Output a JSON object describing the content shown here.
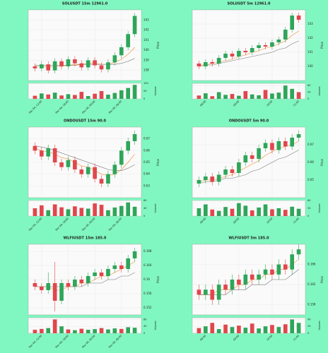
{
  "chart_data": [
    {
      "type": "candlestick",
      "title": "SOLUSDT 15m 12961.0",
      "ylabel": "Price",
      "vlabel": "Volume",
      "up_color": "#2ea65a",
      "down_color": "#e0474c",
      "xlim": [
        -1,
        16
      ],
      "xticks": [
        {
          "value": 1,
          "label": "Dec 04, 12:00"
        },
        {
          "value": 5,
          "label": "Dec 04, 18:00"
        },
        {
          "value": 9,
          "label": "Dec 05, 00:00"
        },
        {
          "value": 13,
          "label": "Dec 05, 06:00"
        }
      ],
      "ylim": [
        137,
        144
      ],
      "yticks": [
        138,
        139,
        140,
        141,
        142,
        143
      ],
      "vlim": [
        0,
        100
      ],
      "vticks": [
        0,
        50,
        100
      ],
      "open": [
        138.4,
        138.2,
        138.6,
        138.0,
        138.9,
        138.4,
        139.1,
        138.7,
        138.3,
        139.0,
        138.5,
        138.1,
        138.8,
        139.5,
        140.3,
        141.6
      ],
      "high": [
        138.7,
        138.9,
        138.9,
        139.2,
        139.2,
        139.4,
        139.4,
        139.0,
        139.3,
        139.3,
        138.8,
        139.1,
        139.8,
        140.6,
        141.9,
        143.7
      ],
      "low": [
        137.9,
        137.9,
        137.7,
        137.7,
        138.1,
        138.1,
        138.4,
        138.0,
        138.0,
        138.2,
        137.8,
        137.8,
        138.5,
        139.2,
        140.0,
        141.3
      ],
      "close": [
        138.2,
        138.6,
        138.0,
        138.9,
        138.4,
        139.1,
        138.7,
        138.3,
        139.0,
        138.5,
        138.1,
        138.8,
        139.5,
        140.3,
        141.6,
        143.4
      ],
      "volume": [
        20,
        35,
        28,
        40,
        22,
        30,
        25,
        45,
        18,
        33,
        50,
        27,
        38,
        55,
        70,
        90
      ],
      "ma_lines": [
        {
          "color": "#f08c2e",
          "values": [
            138.4,
            138.4,
            138.3,
            138.4,
            138.4,
            138.5,
            138.6,
            138.6,
            138.7,
            138.7,
            138.6,
            138.6,
            138.8,
            139.1,
            139.6,
            140.3
          ]
        },
        {
          "color": "#777777",
          "values": [
            138.5,
            138.5,
            138.5,
            138.5,
            138.5,
            138.5,
            138.5,
            138.6,
            138.6,
            138.6,
            138.6,
            138.6,
            138.6,
            138.7,
            138.9,
            139.2
          ]
        }
      ]
    },
    {
      "type": "candlestick",
      "title": "SOLUSDT 5m 12961.0",
      "ylabel": "Price",
      "vlabel": "Volume",
      "up_color": "#2ea65a",
      "down_color": "#e0474c",
      "xlim": [
        -1,
        16
      ],
      "xticks": [
        {
          "value": 1,
          "label": "08:00"
        },
        {
          "value": 6,
          "label": "09:00"
        },
        {
          "value": 11,
          "label": "10:00"
        },
        {
          "value": 15,
          "label": "11:00"
        }
      ],
      "ylim": [
        139,
        144
      ],
      "yticks": [
        140,
        141,
        142,
        143
      ],
      "vlim": [
        0,
        70
      ],
      "vticks": [
        0,
        30,
        60
      ],
      "open": [
        140.2,
        140.0,
        140.3,
        140.2,
        140.6,
        140.9,
        140.7,
        141.1,
        141.0,
        141.3,
        141.5,
        141.4,
        141.7,
        141.9,
        142.6,
        143.6
      ],
      "high": [
        140.4,
        140.5,
        140.5,
        140.8,
        141.1,
        141.1,
        141.3,
        141.3,
        141.5,
        141.7,
        141.7,
        141.9,
        142.1,
        142.8,
        143.8,
        143.8
      ],
      "low": [
        139.8,
        139.8,
        140.0,
        140.0,
        140.4,
        140.5,
        140.5,
        140.8,
        140.8,
        141.1,
        141.2,
        141.2,
        141.5,
        141.7,
        142.4,
        143.1
      ],
      "close": [
        140.0,
        140.3,
        140.2,
        140.6,
        140.9,
        140.7,
        141.1,
        141.0,
        141.3,
        141.5,
        141.4,
        141.7,
        141.9,
        142.6,
        143.6,
        143.3
      ],
      "volume": [
        15,
        25,
        12,
        30,
        18,
        22,
        14,
        35,
        20,
        16,
        40,
        24,
        28,
        60,
        45,
        30
      ],
      "ma_lines": [
        {
          "color": "#f08c2e",
          "values": [
            140.1,
            140.1,
            140.2,
            140.3,
            140.4,
            140.5,
            140.7,
            140.8,
            141.0,
            141.1,
            141.3,
            141.4,
            141.6,
            141.8,
            142.2,
            142.5
          ]
        },
        {
          "color": "#777777",
          "values": [
            140.0,
            140.1,
            140.1,
            140.2,
            140.3,
            140.4,
            140.5,
            140.6,
            140.7,
            140.8,
            140.9,
            141.0,
            141.2,
            141.3,
            141.6,
            141.8
          ]
        }
      ]
    },
    {
      "type": "candlestick",
      "title": "ONDOUSDT 15m 90.0",
      "ylabel": "Price",
      "vlabel": "Volume",
      "up_color": "#2ea65a",
      "down_color": "#e0474c",
      "xlim": [
        -1,
        16
      ],
      "xticks": [
        {
          "value": 1,
          "label": "Dec 04, 12:00"
        },
        {
          "value": 5,
          "label": "Dec 04, 18:00"
        },
        {
          "value": 9,
          "label": "Dec 05, 00:00"
        },
        {
          "value": 13,
          "label": "Dec 05, 06:00"
        }
      ],
      "ylim": [
        0.62,
        0.68
      ],
      "yticks": [
        0.63,
        0.64,
        0.65,
        0.66,
        0.67
      ],
      "vlim": [
        0,
        80
      ],
      "vticks": [
        0,
        40,
        80
      ],
      "open": [
        0.664,
        0.66,
        0.655,
        0.662,
        0.65,
        0.646,
        0.652,
        0.644,
        0.64,
        0.646,
        0.636,
        0.632,
        0.64,
        0.648,
        0.66,
        0.668
      ],
      "high": [
        0.667,
        0.663,
        0.665,
        0.665,
        0.653,
        0.655,
        0.655,
        0.647,
        0.649,
        0.649,
        0.639,
        0.643,
        0.651,
        0.663,
        0.671,
        0.677
      ],
      "low": [
        0.657,
        0.652,
        0.652,
        0.647,
        0.643,
        0.643,
        0.641,
        0.637,
        0.637,
        0.633,
        0.629,
        0.629,
        0.637,
        0.645,
        0.657,
        0.665
      ],
      "close": [
        0.66,
        0.655,
        0.662,
        0.65,
        0.646,
        0.652,
        0.644,
        0.64,
        0.646,
        0.636,
        0.632,
        0.64,
        0.648,
        0.66,
        0.668,
        0.674
      ],
      "volume": [
        40,
        55,
        30,
        60,
        45,
        35,
        50,
        42,
        38,
        65,
        58,
        30,
        44,
        52,
        70,
        48
      ],
      "ma_lines": [
        {
          "color": "#f08c2e",
          "values": [
            0.662,
            0.66,
            0.659,
            0.657,
            0.654,
            0.653,
            0.65,
            0.647,
            0.646,
            0.643,
            0.64,
            0.639,
            0.64,
            0.644,
            0.65,
            0.657
          ]
        },
        {
          "color": "#777777",
          "values": [
            0.664,
            0.663,
            0.662,
            0.66,
            0.658,
            0.656,
            0.654,
            0.652,
            0.65,
            0.648,
            0.646,
            0.644,
            0.643,
            0.643,
            0.645,
            0.648
          ]
        }
      ]
    },
    {
      "type": "candlestick",
      "title": "ONDOUSDT 5m 90.0",
      "ylabel": "Price",
      "vlabel": "Volume",
      "up_color": "#2ea65a",
      "down_color": "#e0474c",
      "xlim": [
        -1,
        16
      ],
      "xticks": [
        {
          "value": 1,
          "label": "08:00"
        },
        {
          "value": 6,
          "label": "09:00"
        },
        {
          "value": 11,
          "label": "10:00"
        },
        {
          "value": 15,
          "label": "11:00"
        }
      ],
      "ylim": [
        0.64,
        0.68
      ],
      "yticks": [
        0.65,
        0.66,
        0.67
      ],
      "vlim": [
        0,
        60
      ],
      "vticks": [
        0,
        30,
        60
      ],
      "open": [
        0.648,
        0.65,
        0.652,
        0.649,
        0.653,
        0.656,
        0.654,
        0.66,
        0.664,
        0.662,
        0.668,
        0.671,
        0.667,
        0.672,
        0.669,
        0.674
      ],
      "high": [
        0.652,
        0.654,
        0.654,
        0.655,
        0.658,
        0.658,
        0.662,
        0.666,
        0.666,
        0.67,
        0.673,
        0.673,
        0.674,
        0.674,
        0.676,
        0.678
      ],
      "low": [
        0.646,
        0.648,
        0.647,
        0.647,
        0.651,
        0.652,
        0.652,
        0.658,
        0.66,
        0.66,
        0.666,
        0.665,
        0.665,
        0.667,
        0.667,
        0.672
      ],
      "close": [
        0.65,
        0.652,
        0.649,
        0.653,
        0.656,
        0.654,
        0.66,
        0.664,
        0.662,
        0.668,
        0.671,
        0.667,
        0.672,
        0.669,
        0.674,
        0.676
      ],
      "volume": [
        30,
        45,
        25,
        20,
        35,
        28,
        50,
        40,
        22,
        33,
        45,
        26,
        30,
        24,
        36,
        28
      ],
      "ma_lines": [
        {
          "color": "#f08c2e",
          "values": [
            0.649,
            0.65,
            0.65,
            0.651,
            0.652,
            0.653,
            0.655,
            0.657,
            0.659,
            0.661,
            0.664,
            0.666,
            0.668,
            0.669,
            0.67,
            0.672
          ]
        },
        {
          "color": "#777777",
          "values": [
            0.648,
            0.649,
            0.649,
            0.65,
            0.651,
            0.651,
            0.652,
            0.653,
            0.655,
            0.656,
            0.658,
            0.66,
            0.662,
            0.663,
            0.665,
            0.667
          ]
        }
      ]
    },
    {
      "type": "candlestick",
      "title": "WLFIUSDT 15m 185.0",
      "ylabel": "Price",
      "vlabel": "Volume",
      "up_color": "#2ea65a",
      "down_color": "#e0474c",
      "xlim": [
        -1,
        16
      ],
      "xticks": [
        {
          "value": 1,
          "label": "Dec 04, 12:00"
        },
        {
          "value": 5,
          "label": "Dec 04, 18:00"
        },
        {
          "value": 9,
          "label": "Dec 05, 00:00"
        },
        {
          "value": 13,
          "label": "Dec 05, 06:00"
        }
      ],
      "ylim": [
        0.15,
        0.17
      ],
      "yticks": [
        0.152,
        0.156,
        0.16,
        0.164,
        0.168
      ],
      "vlim": [
        0,
        90
      ],
      "vticks": [
        0,
        40,
        80
      ],
      "open": [
        0.159,
        0.158,
        0.157,
        0.159,
        0.154,
        0.159,
        0.158,
        0.16,
        0.159,
        0.161,
        0.162,
        0.161,
        0.163,
        0.164,
        0.163,
        0.166
      ],
      "high": [
        0.16,
        0.159,
        0.162,
        0.165,
        0.16,
        0.16,
        0.161,
        0.161,
        0.162,
        0.163,
        0.163,
        0.164,
        0.165,
        0.165,
        0.167,
        0.169
      ],
      "low": [
        0.157,
        0.156,
        0.156,
        0.151,
        0.153,
        0.157,
        0.157,
        0.158,
        0.158,
        0.16,
        0.16,
        0.16,
        0.162,
        0.162,
        0.162,
        0.165
      ],
      "close": [
        0.158,
        0.157,
        0.159,
        0.154,
        0.159,
        0.158,
        0.16,
        0.159,
        0.161,
        0.162,
        0.161,
        0.163,
        0.164,
        0.163,
        0.166,
        0.168
      ],
      "volume": [
        20,
        25,
        30,
        80,
        40,
        22,
        18,
        26,
        20,
        24,
        30,
        22,
        28,
        25,
        35,
        32
      ],
      "ma_lines": [
        {
          "color": "#f08c2e",
          "values": [
            0.158,
            0.158,
            0.158,
            0.157,
            0.157,
            0.158,
            0.158,
            0.159,
            0.159,
            0.16,
            0.161,
            0.161,
            0.162,
            0.163,
            0.164,
            0.165
          ]
        },
        {
          "color": "#777777",
          "values": [
            0.158,
            0.158,
            0.158,
            0.158,
            0.158,
            0.158,
            0.158,
            0.158,
            0.159,
            0.159,
            0.159,
            0.16,
            0.16,
            0.161,
            0.161,
            0.162
          ]
        }
      ]
    },
    {
      "type": "candlestick",
      "title": "WLFIUSDT 5m 185.0",
      "ylabel": "Price",
      "vlabel": "Volume",
      "up_color": "#2ea65a",
      "down_color": "#e0474c",
      "xlim": [
        -1,
        16
      ],
      "xticks": [
        {
          "value": 1,
          "label": "08:00"
        },
        {
          "value": 6,
          "label": "09:00"
        },
        {
          "value": 11,
          "label": "10:00"
        },
        {
          "value": 15,
          "label": "11:00"
        }
      ],
      "ylim": [
        0.156,
        0.17
      ],
      "yticks": [
        0.158,
        0.162,
        0.166
      ],
      "vlim": [
        0,
        45
      ],
      "vticks": [
        0,
        20,
        40
      ],
      "open": [
        0.161,
        0.16,
        0.161,
        0.159,
        0.162,
        0.161,
        0.163,
        0.162,
        0.164,
        0.163,
        0.164,
        0.165,
        0.164,
        0.166,
        0.165,
        0.168
      ],
      "high": [
        0.162,
        0.162,
        0.162,
        0.163,
        0.163,
        0.164,
        0.164,
        0.165,
        0.165,
        0.165,
        0.166,
        0.166,
        0.167,
        0.167,
        0.169,
        0.17
      ],
      "low": [
        0.159,
        0.159,
        0.158,
        0.158,
        0.16,
        0.16,
        0.161,
        0.161,
        0.162,
        0.162,
        0.163,
        0.163,
        0.163,
        0.164,
        0.164,
        0.167
      ],
      "close": [
        0.16,
        0.161,
        0.159,
        0.162,
        0.161,
        0.163,
        0.162,
        0.164,
        0.163,
        0.164,
        0.165,
        0.164,
        0.166,
        0.165,
        0.168,
        0.169
      ],
      "volume": [
        15,
        20,
        30,
        12,
        25,
        18,
        22,
        16,
        28,
        14,
        20,
        24,
        18,
        26,
        40,
        30
      ],
      "ma_lines": [
        {
          "color": "#f08c2e",
          "values": [
            0.16,
            0.16,
            0.16,
            0.161,
            0.161,
            0.161,
            0.162,
            0.162,
            0.163,
            0.163,
            0.164,
            0.164,
            0.165,
            0.165,
            0.166,
            0.167
          ]
        },
        {
          "color": "#777777",
          "values": [
            0.16,
            0.16,
            0.16,
            0.16,
            0.16,
            0.161,
            0.161,
            0.161,
            0.162,
            0.162,
            0.162,
            0.163,
            0.163,
            0.163,
            0.164,
            0.165
          ]
        }
      ]
    }
  ]
}
